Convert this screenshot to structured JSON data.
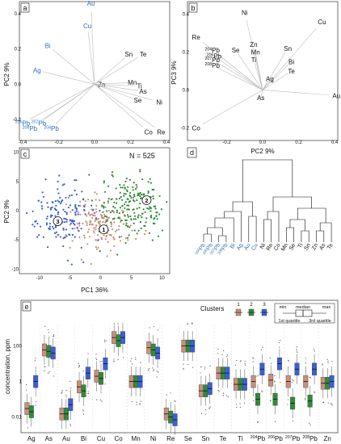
{
  "colors": {
    "black": "#111111",
    "blue": "#2f6fc4",
    "grey": "#bdbdbd",
    "c1": "#c8907a",
    "c2": "#2e8b3a",
    "c3": "#3b5fd6"
  },
  "panels": {
    "a": "a",
    "b": "b",
    "c": "c",
    "d": "d",
    "e": "e"
  },
  "chart_data": [
    {
      "id": "a",
      "type": "scatter",
      "xlabel": "",
      "ylabel": "PC2 9%",
      "xlim": [
        -0.4,
        0.4
      ],
      "ylim": [
        -0.3,
        0.45
      ],
      "xticks": [
        "-0.4",
        "-0.2",
        "0.0",
        "0.2",
        "0.4"
      ],
      "yticks": [
        "-0.2",
        "0.0",
        "0.2",
        "0.4"
      ],
      "arrows": [
        {
          "label": "Au",
          "x": -0.02,
          "y": 0.46,
          "color": "blue"
        },
        {
          "label": "Cu",
          "x": -0.04,
          "y": 0.33,
          "color": "blue"
        },
        {
          "label": "Bi",
          "x": -0.26,
          "y": 0.22,
          "color": "blue"
        },
        {
          "label": "Ag",
          "x": -0.32,
          "y": 0.08,
          "color": "blue"
        },
        {
          "label": "Sn",
          "x": 0.19,
          "y": 0.17,
          "color": "black"
        },
        {
          "label": "Te",
          "x": 0.27,
          "y": 0.17,
          "color": "black"
        },
        {
          "label": "Zn",
          "x": 0.04,
          "y": 0.0,
          "color": "black"
        },
        {
          "label": "Mn",
          "x": 0.21,
          "y": 0.01,
          "color": "black"
        },
        {
          "label": "Ti",
          "x": 0.25,
          "y": -0.01,
          "color": "black"
        },
        {
          "label": "As",
          "x": 0.27,
          "y": -0.04,
          "color": "black"
        },
        {
          "label": "Se",
          "x": 0.24,
          "y": -0.09,
          "color": "black"
        },
        {
          "label": "Ni",
          "x": 0.36,
          "y": -0.1,
          "color": "black"
        },
        {
          "label": "Co",
          "x": 0.3,
          "y": -0.27,
          "color": "black"
        },
        {
          "label": "Re",
          "x": 0.37,
          "y": -0.27,
          "color": "black"
        },
        {
          "label": "206Pb",
          "x": -0.4,
          "y": -0.22,
          "color": "blue"
        },
        {
          "label": "207Pb",
          "x": -0.31,
          "y": -0.22,
          "color": "blue"
        },
        {
          "label": "208Pb",
          "x": -0.36,
          "y": -0.25,
          "color": "blue"
        },
        {
          "label": "204Pb",
          "x": -0.24,
          "y": -0.25,
          "color": "blue"
        }
      ]
    },
    {
      "id": "b",
      "type": "scatter",
      "xlabel": "PC2 9%",
      "ylabel": "PC3 9%",
      "xlim": [
        -0.4,
        0.4
      ],
      "ylim": [
        -0.25,
        0.45
      ],
      "xticks": [
        "-0.2",
        "0.0",
        "0.2",
        "0.4"
      ],
      "yticks": [
        "-0.2",
        "0.0",
        "0.2",
        "0.4"
      ],
      "arrows": [
        {
          "label": "Ni",
          "x": -0.1,
          "y": 0.41,
          "color": "black"
        },
        {
          "label": "Cu",
          "x": 0.33,
          "y": 0.36,
          "color": "black"
        },
        {
          "label": "Re",
          "x": -0.37,
          "y": 0.28,
          "color": "black"
        },
        {
          "label": "Zn",
          "x": -0.05,
          "y": 0.24,
          "color": "black"
        },
        {
          "label": "Se",
          "x": -0.15,
          "y": 0.21,
          "color": "black"
        },
        {
          "label": "Sn",
          "x": 0.14,
          "y": 0.22,
          "color": "black"
        },
        {
          "label": "Mn",
          "x": -0.04,
          "y": 0.2,
          "color": "black"
        },
        {
          "label": "Ti",
          "x": -0.05,
          "y": 0.16,
          "color": "black"
        },
        {
          "label": "Bi",
          "x": 0.16,
          "y": 0.15,
          "color": "black"
        },
        {
          "label": "Te",
          "x": 0.16,
          "y": 0.1,
          "color": "black"
        },
        {
          "label": "Ag",
          "x": 0.04,
          "y": 0.06,
          "color": "black"
        },
        {
          "label": "As",
          "x": -0.01,
          "y": -0.04,
          "color": "black"
        },
        {
          "label": "Au",
          "x": 0.41,
          "y": -0.03,
          "color": "black"
        },
        {
          "label": "Co",
          "x": -0.37,
          "y": -0.2,
          "color": "black"
        },
        {
          "label": "204Pb",
          "x": -0.28,
          "y": 0.21,
          "color": "black"
        },
        {
          "label": "206Pb",
          "x": -0.27,
          "y": 0.18,
          "color": "black"
        },
        {
          "label": "207Pb",
          "x": -0.28,
          "y": 0.16,
          "color": "black"
        },
        {
          "label": "208Pb",
          "x": -0.28,
          "y": 0.13,
          "color": "black"
        }
      ]
    },
    {
      "id": "c",
      "type": "scatter",
      "xlabel": "PC1 36%",
      "ylabel": "PC2 9%",
      "xlim": [
        -13,
        11
      ],
      "ylim": [
        -10.5,
        10.5
      ],
      "xticks": [
        "-10",
        "-5",
        "0",
        "5",
        "10"
      ],
      "yticks": [
        "-10",
        "-5",
        "0",
        "5",
        "10"
      ],
      "annotation": "N = 525",
      "clusters": [
        {
          "label": "1",
          "color": "c1",
          "cx": 0,
          "cy": -2,
          "sx": 2.6,
          "sy": 2.3,
          "n": 170,
          "label_x": 0.5,
          "label_y": -3.2
        },
        {
          "label": "2",
          "color": "c2",
          "cx": 5,
          "cy": 0.5,
          "sx": 2.7,
          "sy": 2.6,
          "n": 200,
          "label_x": 7.5,
          "label_y": 1.8
        },
        {
          "label": "3",
          "color": "c3",
          "cx": -6.5,
          "cy": -0.5,
          "sx": 2.5,
          "sy": 2.6,
          "n": 155,
          "label_x": -7,
          "label_y": -1.8
        }
      ]
    },
    {
      "id": "d",
      "type": "dendrogram",
      "leaves": [
        {
          "label": "204Pb",
          "color": "blue"
        },
        {
          "label": "206Pb",
          "color": "blue"
        },
        {
          "label": "207Pb",
          "color": "blue"
        },
        {
          "label": "208Pb",
          "color": "blue"
        },
        {
          "label": "Bi",
          "color": "blue"
        },
        {
          "label": "Ag",
          "color": "blue"
        },
        {
          "label": "Au",
          "color": "blue"
        },
        {
          "label": "Cu",
          "color": "blue"
        },
        {
          "label": "Ni",
          "color": "black"
        },
        {
          "label": "Re",
          "color": "black"
        },
        {
          "label": "Co",
          "color": "black"
        },
        {
          "label": "Mn",
          "color": "black"
        },
        {
          "label": "Se",
          "color": "black"
        },
        {
          "label": "Ti",
          "color": "black"
        },
        {
          "label": "Sn",
          "color": "black"
        },
        {
          "label": "Zn",
          "color": "black"
        },
        {
          "label": "As",
          "color": "black"
        },
        {
          "label": "Te",
          "color": "black"
        }
      ]
    },
    {
      "id": "e",
      "type": "box",
      "ylabel": "concentration, ppm",
      "scale": "log",
      "ylim": [
        0.002,
        2000
      ],
      "yticks": [
        {
          "v": 0.01,
          "t": "0.01"
        },
        {
          "v": 1,
          "t": "1"
        },
        {
          "v": 100,
          "t": "100"
        }
      ],
      "legend": {
        "title": "Clusters",
        "items": [
          "1",
          "2",
          "3"
        ]
      },
      "key": {
        "min": "min",
        "median": "median",
        "max": "max",
        "q1": "1st quartile",
        "q3": "3rd quartile"
      },
      "categories": [
        "Ag",
        "As",
        "Au",
        "Bi",
        "Cu",
        "Co",
        "Mn",
        "Ni",
        "Re",
        "Se",
        "Sn",
        "Te",
        "Ti",
        "204Pb",
        "206Pb",
        "207Pb",
        "208Pb",
        "Zn"
      ],
      "series": [
        {
          "name": "1",
          "color": "c1",
          "medians": [
            0.03,
            60,
            0.015,
            0.5,
            2,
            300,
            1,
            80,
            0.015,
            100,
            0.3,
            3,
            0.7,
            1,
            1.2,
            1,
            1,
            0.8
          ]
        },
        {
          "name": "2",
          "color": "c2",
          "medians": [
            0.02,
            50,
            0.015,
            0.3,
            1.5,
            200,
            1,
            60,
            0.01,
            100,
            0.3,
            3,
            0.7,
            0.1,
            0.1,
            0.06,
            0.08,
            0.8
          ]
        },
        {
          "name": "3",
          "color": "c3",
          "medians": [
            1,
            40,
            0.05,
            3,
            10,
            300,
            1,
            40,
            0.007,
            100,
            0.4,
            3,
            0.7,
            5,
            10,
            5,
            5,
            1
          ]
        }
      ]
    }
  ]
}
